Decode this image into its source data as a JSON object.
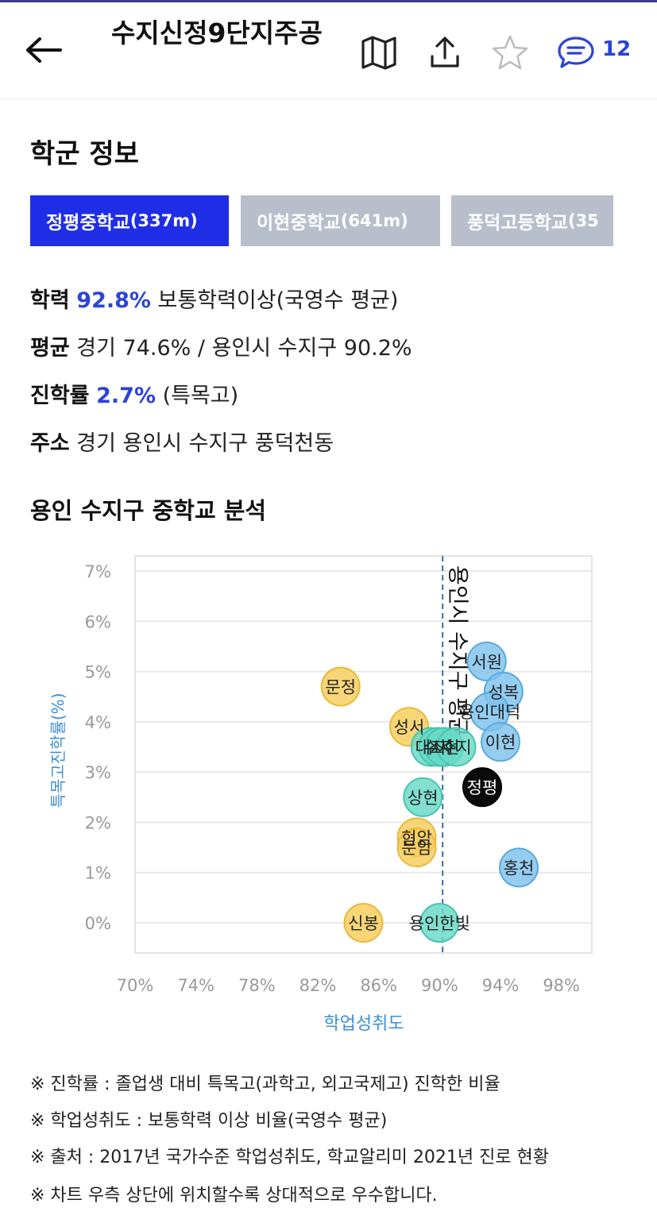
{
  "header": {
    "title": "수지신정9단지주공",
    "comment_count": "12",
    "icons": [
      "back-arrow-icon",
      "map-icon",
      "share-icon",
      "star-icon",
      "comment-icon"
    ]
  },
  "section": {
    "title": "학군 정보"
  },
  "tabs": [
    {
      "name": "정평중학교",
      "dist": "(337m)",
      "active": true
    },
    {
      "name": "이현중학교",
      "dist": "(641m)",
      "active": false
    },
    {
      "name": "풍덕고등학교",
      "dist": "(35",
      "active": false
    }
  ],
  "info": {
    "academic_label": "학력",
    "academic_value": "92.8%",
    "academic_desc": " 보통학력이상(국영수 평균)",
    "avg_label": "평균",
    "avg_desc": " 경기 74.6% / 용인시 수지구 90.2%",
    "adv_label": "진학률",
    "adv_value": "2.7%",
    "adv_desc": " (특목고)",
    "addr_label": "주소",
    "addr_desc": " 경기 용인시 수지구 풍덕천동"
  },
  "chart_title": "용인 수지구 중학교 분석",
  "chart_data": {
    "type": "scatter",
    "xlabel": "학업성취도",
    "ylabel": "특목고진학률(%)",
    "x_ticks": [
      "70%",
      "74%",
      "78%",
      "82%",
      "86%",
      "90%",
      "94%",
      "98%"
    ],
    "y_ticks": [
      "0%",
      "1%",
      "2%",
      "3%",
      "4%",
      "5%",
      "6%",
      "7%"
    ],
    "xlim": [
      70,
      100
    ],
    "ylim": [
      -0.6,
      7.3
    ],
    "grid": true,
    "reference_line": {
      "x": 90.2,
      "label": "용인시 수지구 평균"
    },
    "colors": {
      "gold": "#f6cd5a",
      "teal": "#66d9c6",
      "blue": "#7ec2ee",
      "black": "#0a0a0a",
      "axis_label": "#3b8fd6",
      "tick": "#999999",
      "grid": "#e8e8e8"
    },
    "points": [
      {
        "label": "서원",
        "x": 93.1,
        "y": 5.2,
        "color": "blue"
      },
      {
        "label": "성복",
        "x": 94.2,
        "y": 4.6,
        "color": "blue"
      },
      {
        "label": "용인대덕",
        "x": 93.3,
        "y": 4.2,
        "color": "blue"
      },
      {
        "label": "이현",
        "x": 94.0,
        "y": 3.6,
        "color": "blue"
      },
      {
        "label": "문정",
        "x": 83.5,
        "y": 4.7,
        "color": "gold"
      },
      {
        "label": "성서",
        "x": 88.0,
        "y": 3.9,
        "color": "gold"
      },
      {
        "label": "대지",
        "x": 89.4,
        "y": 3.5,
        "color": "teal"
      },
      {
        "label": "수지",
        "x": 89.9,
        "y": 3.5,
        "color": "teal"
      },
      {
        "label": "소현",
        "x": 90.3,
        "y": 3.5,
        "color": "teal"
      },
      {
        "label": "수지",
        "x": 91.1,
        "y": 3.5,
        "color": "teal"
      },
      {
        "label": "정평",
        "x": 92.8,
        "y": 2.7,
        "color": "black"
      },
      {
        "label": "상현",
        "x": 88.9,
        "y": 2.5,
        "color": "teal"
      },
      {
        "label": "현암",
        "x": 88.5,
        "y": 1.7,
        "color": "gold"
      },
      {
        "label": "문암",
        "x": 88.5,
        "y": 1.5,
        "color": "gold"
      },
      {
        "label": "홍천",
        "x": 95.2,
        "y": 1.1,
        "color": "blue"
      },
      {
        "label": "신봉",
        "x": 85.0,
        "y": 0.0,
        "color": "gold"
      },
      {
        "label": "용인한빛",
        "x": 90.0,
        "y": 0.0,
        "color": "teal"
      }
    ]
  },
  "notes": [
    "※ 진학률 : 졸업생 대비 특목고(과학고, 외고국제고) 진학한 비율",
    "※ 학업성취도 : 보통학력 이상 비율(국영수 평균)",
    "※ 출처 : 2017년 국가수준 학업성취도, 학교알리미 2021년 진로 현황",
    "※ 차트 우측 상단에 위치할수록 상대적으로 우수합니다."
  ]
}
